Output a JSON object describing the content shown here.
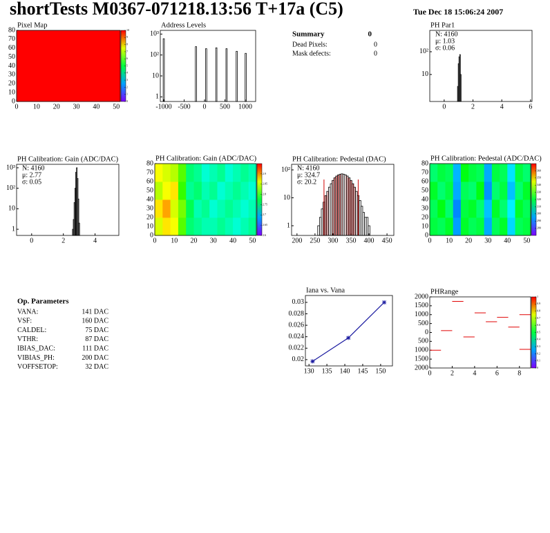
{
  "header": {
    "title": "shortTests M0367-071218.13:56 T+17a (C5)",
    "date": "Tue Dec 18 15:06:24 2007"
  },
  "summary": {
    "title": "Summary",
    "title_value": "0",
    "rows": [
      [
        "Dead Pixels:",
        "0"
      ],
      [
        "Mask defects:",
        "0"
      ]
    ]
  },
  "op_parameters": {
    "title": "Op. Parameters",
    "rows": [
      [
        "VANA:",
        "141 DAC"
      ],
      [
        "VSF:",
        "160 DAC"
      ],
      [
        "CALDEL:",
        "75 DAC"
      ],
      [
        "VTHR:",
        "87 DAC"
      ],
      [
        "IBIAS_DAC:",
        "111 DAC"
      ],
      [
        "VIBIAS_PH:",
        "200 DAC"
      ],
      [
        "VOFFSETOP:",
        "32 DAC"
      ]
    ]
  },
  "chart_data": [
    {
      "type": "heatmap",
      "title": "Pixel Map",
      "xlim": [
        0,
        52
      ],
      "ylim": [
        0,
        80
      ],
      "xticks": [
        0,
        10,
        20,
        30,
        40,
        50
      ],
      "yticks": [
        0,
        10,
        20,
        30,
        40,
        50,
        60,
        70,
        80
      ],
      "zlim": [
        0,
        10
      ],
      "zticks": [
        0,
        1,
        2,
        3,
        4,
        5,
        6,
        7,
        8,
        9,
        10
      ],
      "z": [
        [
          10,
          10,
          10,
          10
        ],
        [
          10,
          10,
          10,
          10
        ],
        [
          10,
          10,
          10,
          10
        ],
        [
          10,
          10,
          10,
          10
        ]
      ]
    },
    {
      "type": "bar",
      "title": "Address Levels",
      "log_y": true,
      "xlim": [
        -1085,
        1254
      ],
      "ylim": [
        0.6,
        1500
      ],
      "xticks": [
        -1000,
        -500,
        0,
        500,
        1000
      ],
      "yticks": [
        1,
        10,
        {
          "value": 100,
          "label": "10²"
        },
        {
          "value": 1000,
          "label": "10³"
        }
      ],
      "bin_width": 30,
      "x": [
        -1000,
        -210,
        40,
        290,
        540,
        790,
        1010
      ],
      "values": [
        600,
        250,
        200,
        220,
        200,
        150,
        120
      ]
    },
    {
      "type": "bar",
      "title": "PH Par1",
      "log_y": true,
      "xlim": [
        -1,
        6.1
      ],
      "ylim": [
        0.65,
        870
      ],
      "xticks": [
        0,
        2,
        4,
        6
      ],
      "yticks": [
        10,
        {
          "value": 100,
          "label": "10²"
        }
      ],
      "bin_width": 0.05,
      "stats": [
        "N: 4160",
        "μ: 1.03",
        "σ: 0.06"
      ],
      "stats_colors": [
        "#000",
        "#000",
        "#000"
      ],
      "x": [
        0.95,
        1.0,
        1.05,
        1.1,
        1.15
      ],
      "values": [
        3,
        30,
        60,
        75,
        10
      ]
    },
    {
      "type": "bar",
      "title": "PH Calibration: Gain (ADC/DAC)",
      "log_y": true,
      "xlim": [
        -0.95,
        5.5
      ],
      "ylim": [
        0.5,
        1470
      ],
      "xticks": [
        0,
        2,
        4
      ],
      "yticks": [
        1,
        10,
        {
          "value": 100,
          "label": "10²"
        },
        {
          "value": 1000,
          "label": "10³"
        }
      ],
      "bin_width": 0.05,
      "stats": [
        "N: 4160",
        "μ: 2.77",
        "σ: 0.05"
      ],
      "stats_colors": [
        "#000",
        "#000",
        "#000"
      ],
      "x": [
        2.6,
        2.65,
        2.7,
        2.75,
        2.8,
        2.85,
        2.9,
        2.95,
        3.0
      ],
      "values": [
        1,
        3,
        20,
        100,
        600,
        1000,
        300,
        30,
        2
      ]
    },
    {
      "type": "heatmap",
      "title": "PH Calibration: Gain (ADC/DAC)",
      "xlim": [
        0,
        52
      ],
      "ylim": [
        0,
        80
      ],
      "xticks": [
        0,
        10,
        20,
        30,
        40,
        50
      ],
      "yticks": [
        0,
        10,
        20,
        30,
        40,
        50,
        60,
        70,
        80
      ],
      "zlim": [
        2.6,
        2.95
      ],
      "zticks": [
        2.6,
        2.65,
        2.7,
        2.75,
        2.8,
        2.85,
        2.9
      ],
      "z": [
        [
          2.86,
          2.88,
          2.87,
          2.82,
          2.76,
          2.75,
          2.74,
          2.74,
          2.75,
          2.74,
          2.73,
          2.74,
          2.75
        ],
        [
          2.88,
          2.9,
          2.86,
          2.83,
          2.77,
          2.74,
          2.75,
          2.73,
          2.74,
          2.75,
          2.74,
          2.73,
          2.74
        ],
        [
          2.85,
          2.87,
          2.88,
          2.81,
          2.75,
          2.76,
          2.74,
          2.75,
          2.73,
          2.74,
          2.75,
          2.74,
          2.73
        ],
        [
          2.87,
          2.86,
          2.85,
          2.82,
          2.76,
          2.75,
          2.73,
          2.74,
          2.75,
          2.73,
          2.74,
          2.75,
          2.74
        ]
      ]
    },
    {
      "type": "bar",
      "title": "PH Calibration: Pedestal (DAC)",
      "log_y": true,
      "xlim": [
        185,
        469
      ],
      "ylim": [
        0.45,
        158
      ],
      "xticks": [
        200,
        250,
        300,
        350,
        400,
        450
      ],
      "yticks": [
        1,
        10,
        {
          "value": 100,
          "label": "10²"
        }
      ],
      "bin_width": 5,
      "fit_range": [
        275,
        370
      ],
      "fit_color": "#d00000",
      "stats": [
        "N: 4160",
        "μ: 324.7",
        "σ: 20.2"
      ],
      "stats_colors": [
        "#000",
        "#d00000",
        "#d00000"
      ],
      "x": [
        260,
        265,
        270,
        275,
        280,
        285,
        290,
        295,
        300,
        305,
        310,
        315,
        320,
        325,
        330,
        335,
        340,
        345,
        350,
        355,
        360,
        365,
        370,
        375,
        380,
        385,
        390,
        395,
        400
      ],
      "values": [
        1,
        2,
        4,
        7,
        12,
        17,
        24,
        32,
        42,
        52,
        60,
        66,
        70,
        72,
        70,
        66,
        60,
        52,
        42,
        32,
        24,
        17,
        12,
        8,
        5,
        3,
        2,
        2,
        1
      ]
    },
    {
      "type": "heatmap",
      "title": "PH Calibration: Pedestal (ADC/DAC)",
      "xlim": [
        0,
        52
      ],
      "ylim": [
        0,
        80
      ],
      "xticks": [
        0,
        10,
        20,
        30,
        40,
        50
      ],
      "yticks": [
        0,
        10,
        20,
        30,
        40,
        50,
        60,
        70,
        80
      ],
      "zlim": [
        270,
        370
      ],
      "zticks": [
        280,
        290,
        300,
        310,
        320,
        330,
        340,
        350,
        360
      ],
      "z": [
        [
          320,
          318,
          322,
          295,
          322,
          318,
          320,
          296,
          318,
          322,
          300,
          318,
          320
        ],
        [
          318,
          324,
          316,
          293,
          320,
          322,
          316,
          298,
          322,
          316,
          302,
          322,
          318
        ],
        [
          322,
          316,
          320,
          296,
          318,
          316,
          324,
          294,
          316,
          320,
          298,
          316,
          322
        ],
        [
          316,
          320,
          318,
          297,
          324,
          320,
          318,
          296,
          320,
          318,
          301,
          320,
          316
        ]
      ]
    },
    {
      "type": "line",
      "title": "Iana vs. Vana",
      "xlim": [
        129,
        153.3
      ],
      "ylim": [
        0.0189,
        0.0312
      ],
      "xticks": [
        130,
        135,
        140,
        145,
        150
      ],
      "yticks": [
        0.02,
        0.022,
        0.024,
        0.026,
        0.028,
        0.03
      ],
      "color": "#1a1aa0",
      "x": [
        131,
        141,
        151
      ],
      "values": [
        0.0197,
        0.0238,
        0.03
      ]
    },
    {
      "type": "segments",
      "title": "PHRange",
      "xlim": [
        0,
        9
      ],
      "ylim": [
        -2000,
        2000
      ],
      "xticks": [
        0,
        2,
        4,
        6,
        8
      ],
      "yticks": [
        {
          "value": -2000,
          "label": "2000"
        },
        {
          "value": -1500,
          "label": "1500"
        },
        {
          "value": -1000,
          "label": "1000"
        },
        {
          "value": -500,
          "label": "500"
        },
        0,
        500,
        1000,
        1500,
        2000
      ],
      "zlim": [
        0,
        1
      ],
      "zticks": [
        0,
        0.1,
        0.2,
        0.3,
        0.4,
        0.5,
        0.6,
        0.7,
        0.8,
        0.9,
        1
      ],
      "series": [
        {
          "color": "#e00000",
          "values": [
            -1000,
            100,
            1750,
            -250,
            1100,
            600,
            850,
            300,
            1000
          ]
        },
        {
          "color": "#e00000",
          "values": [
            null,
            null,
            null,
            null,
            null,
            null,
            null,
            null,
            -950
          ]
        }
      ]
    }
  ]
}
